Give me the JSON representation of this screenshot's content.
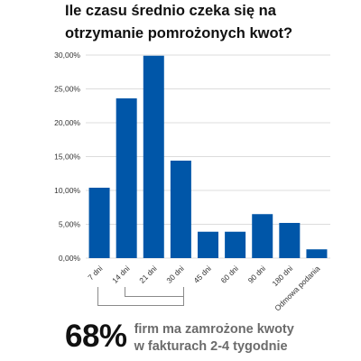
{
  "title": "Ile czasu średnio czeka się na otrzymanie pomrożonych kwot?",
  "stat": {
    "number": "68%",
    "text_line1": "firm ma zamrożone kwoty",
    "text_line2": "w fakturach 2-4 tygodnie"
  },
  "colors": {
    "bar": "#0056a8",
    "bracket": "#8a8a8a",
    "grid": "#dcdcdc",
    "text": "#111111",
    "muted_text": "#6b6b6b"
  },
  "chart_data": {
    "type": "bar",
    "title": "Ile czasu średnio czeka się na otrzymanie pomrożonych kwot?",
    "categories": [
      "7 dni",
      "14 dni",
      "21 dni",
      "30 dni",
      "45 dni",
      "60 dni",
      "90 dni",
      "180 dni",
      "Odmowa podania"
    ],
    "values": [
      10.4,
      23.6,
      29.9,
      14.4,
      3.9,
      3.9,
      6.5,
      5.2,
      1.3
    ],
    "y_ticks": [
      "0,00%",
      "5,00%",
      "10,00%",
      "15,00%",
      "20,00%",
      "25,00%",
      "30,00%"
    ],
    "ylim": [
      0,
      30
    ],
    "grid": true,
    "highlight_bracket": [
      "14 dni",
      "30 dni"
    ]
  }
}
